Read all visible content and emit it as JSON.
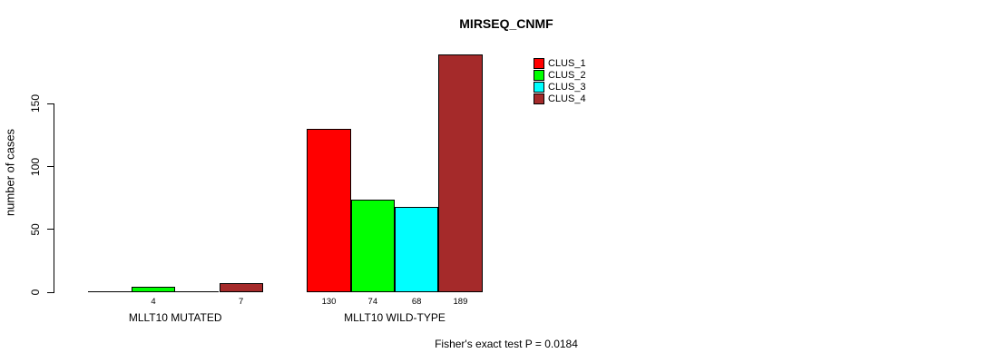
{
  "chart_data": {
    "type": "bar",
    "grouped": true,
    "title": "MIRSEQ_CNMF",
    "ylabel": "number of cases",
    "xlabel": "",
    "categories": [
      "MLLT10 MUTATED",
      "MLLT10 WILD-TYPE"
    ],
    "series": [
      {
        "name": "CLUS_1",
        "color": "#FF0000",
        "values": [
          0,
          130
        ]
      },
      {
        "name": "CLUS_2",
        "color": "#00FF00",
        "values": [
          4,
          74
        ]
      },
      {
        "name": "CLUS_3",
        "color": "#00FFFF",
        "values": [
          0,
          68
        ]
      },
      {
        "name": "CLUS_4",
        "color": "#A52A2A",
        "values": [
          7,
          189
        ]
      }
    ],
    "bar_labels": [
      [
        "",
        "4",
        "",
        "7"
      ],
      [
        "130",
        "74",
        "68",
        "189"
      ]
    ],
    "yticks": [
      0,
      50,
      100,
      150
    ],
    "ylim": [
      0,
      195
    ],
    "grid": false,
    "legend_position": "top-right",
    "legend_entries": [
      "CLUS_1",
      "CLUS_2",
      "CLUS_3",
      "CLUS_4"
    ],
    "annotation": "Fisher's exact test P = 0.0184",
    "background": "#ffffff",
    "axis_color": "#000000"
  }
}
